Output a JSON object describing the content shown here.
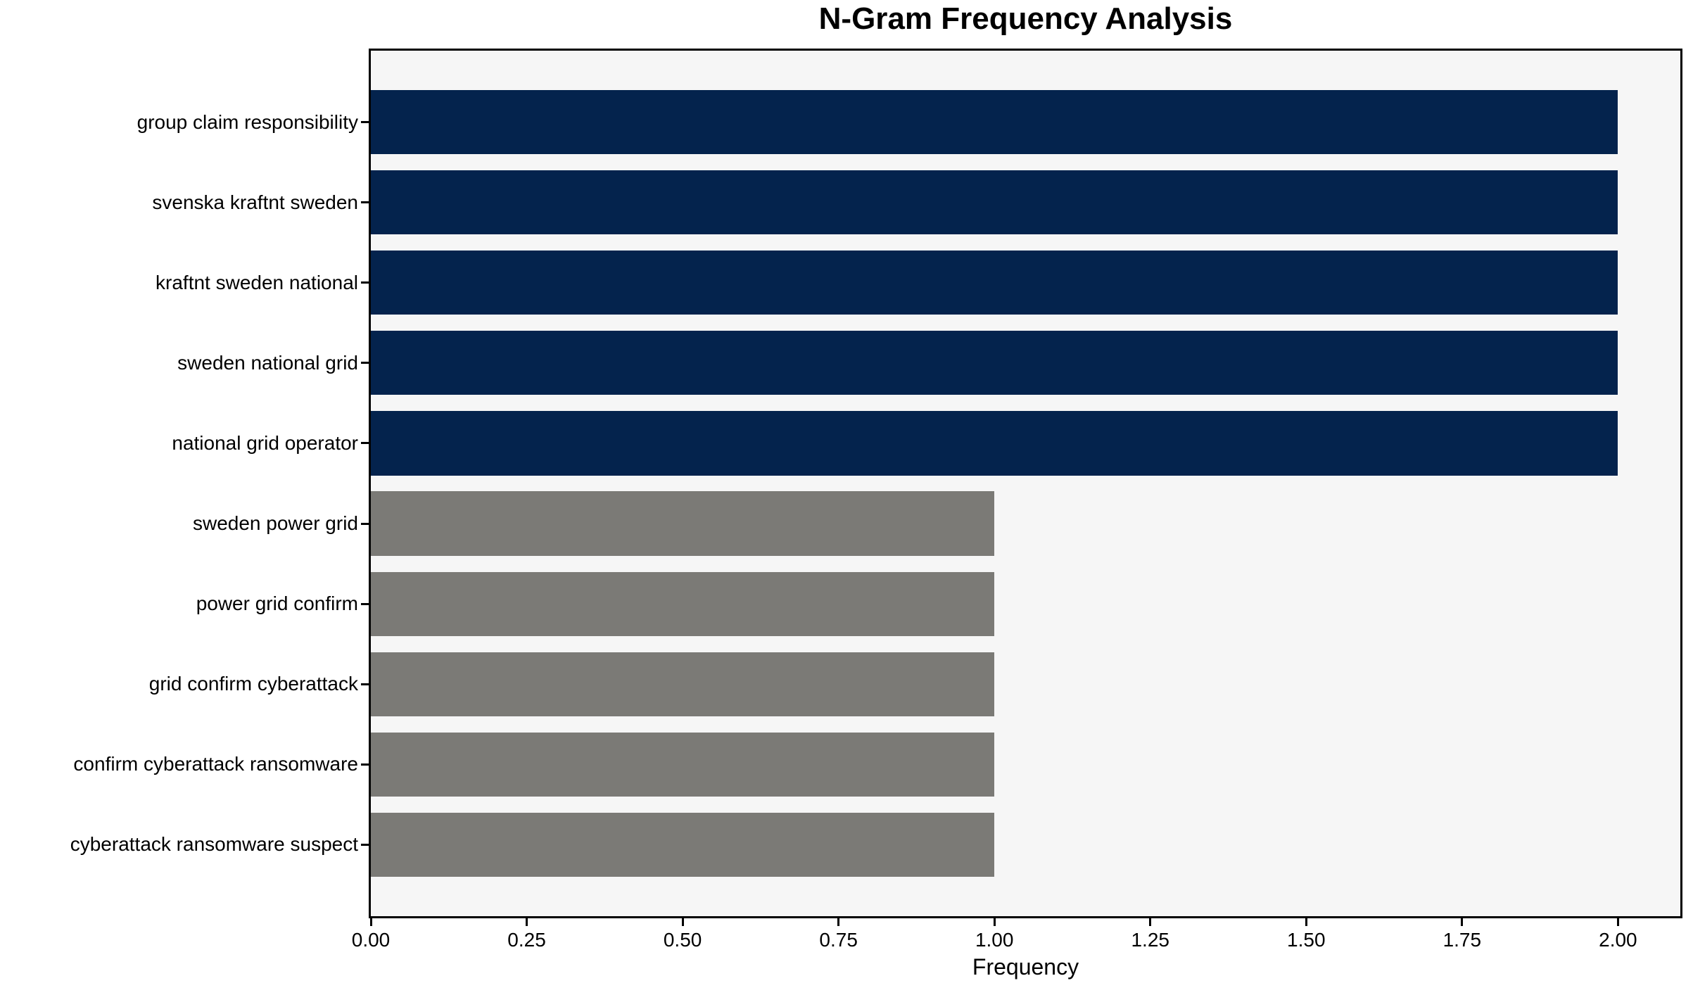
{
  "chart_data": {
    "type": "bar",
    "orientation": "horizontal",
    "title": "N-Gram Frequency Analysis",
    "xlabel": "Frequency",
    "ylabel": "",
    "categories": [
      "group claim responsibility",
      "svenska kraftnt sweden",
      "kraftnt sweden national",
      "sweden national grid",
      "national grid operator",
      "sweden power grid",
      "power grid confirm",
      "grid confirm cyberattack",
      "confirm cyberattack ransomware",
      "cyberattack ransomware suspect"
    ],
    "values": [
      2,
      2,
      2,
      2,
      2,
      1,
      1,
      1,
      1,
      1
    ],
    "bar_colors": [
      "#04234d",
      "#04234d",
      "#04234d",
      "#04234d",
      "#04234d",
      "#7b7a76",
      "#7b7a76",
      "#7b7a76",
      "#7b7a76",
      "#7b7a76"
    ],
    "colors": {
      "high_frequency_bar": "#04234d",
      "low_frequency_bar": "#7b7a76",
      "plot_background": "#f6f6f6",
      "spine": "#000000",
      "text": "#000000"
    },
    "xlim": [
      0,
      2.1
    ],
    "xticks": [
      0,
      0.25,
      0.5,
      0.75,
      1.0,
      1.25,
      1.5,
      1.75,
      2.0
    ],
    "xtick_labels": [
      "0.00",
      "0.25",
      "0.50",
      "0.75",
      "1.00",
      "1.25",
      "1.50",
      "1.75",
      "2.00"
    ],
    "bar_rel_height": 0.8,
    "y_margin": 0.05,
    "grid": false,
    "legend": null
  }
}
